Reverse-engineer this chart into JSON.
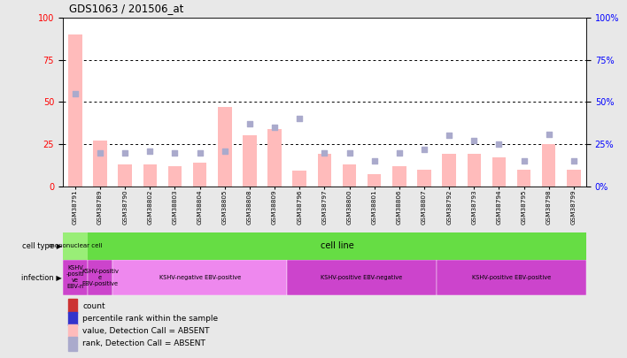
{
  "title": "GDS1063 / 201506_at",
  "samples": [
    "GSM38791",
    "GSM38789",
    "GSM38790",
    "GSM38802",
    "GSM38803",
    "GSM38804",
    "GSM38805",
    "GSM38808",
    "GSM38809",
    "GSM38796",
    "GSM38797",
    "GSM38800",
    "GSM38801",
    "GSM38806",
    "GSM38807",
    "GSM38792",
    "GSM38793",
    "GSM38794",
    "GSM38795",
    "GSM38798",
    "GSM38799"
  ],
  "bar_values_absent": [
    90,
    27,
    13,
    13,
    12,
    14,
    47,
    30,
    34,
    9,
    19,
    13,
    7,
    12,
    10,
    19,
    19,
    17,
    10,
    25,
    10
  ],
  "dot_values_absent": [
    55,
    20,
    20,
    21,
    20,
    20,
    21,
    37,
    35,
    40,
    20,
    20,
    15,
    20,
    22,
    30,
    27,
    25,
    15,
    31,
    15
  ],
  "ylim": [
    0,
    100
  ],
  "yticks": [
    0,
    25,
    50,
    75,
    100
  ],
  "bar_color_absent": "#ffbbbb",
  "dot_color_absent": "#aaaacc",
  "cell_type_mono_color": "#99ee77",
  "cell_type_line_color": "#66dd44",
  "inf_color_small": "#cc44cc",
  "inf_color_neg_pos": "#ee88ee",
  "inf_color_pos_neg": "#cc44cc",
  "inf_color_pos_pos": "#cc44cc",
  "background_color": "#e8e8e8",
  "plot_bg": "#ffffff",
  "legend_items": [
    "count",
    "percentile rank within the sample",
    "value, Detection Call = ABSENT",
    "rank, Detection Call = ABSENT"
  ],
  "legend_colors": [
    "#cc3333",
    "#3333cc",
    "#ffbbbb",
    "#aaaacc"
  ],
  "infection_segments": [
    {
      "start": 0,
      "end": 1,
      "label": "KSHV\n-positi\nve\nEBV-n",
      "color": "#cc44cc"
    },
    {
      "start": 1,
      "end": 2,
      "label": "KSHV-positiv\ne\nEBV-positive",
      "color": "#cc44cc"
    },
    {
      "start": 2,
      "end": 9,
      "label": "KSHV-negative EBV-positive",
      "color": "#ee88ee"
    },
    {
      "start": 9,
      "end": 15,
      "label": "KSHV-positive EBV-negative",
      "color": "#cc44cc"
    },
    {
      "start": 15,
      "end": 21,
      "label": "KSHV-positive EBV-positive",
      "color": "#cc44cc"
    }
  ]
}
